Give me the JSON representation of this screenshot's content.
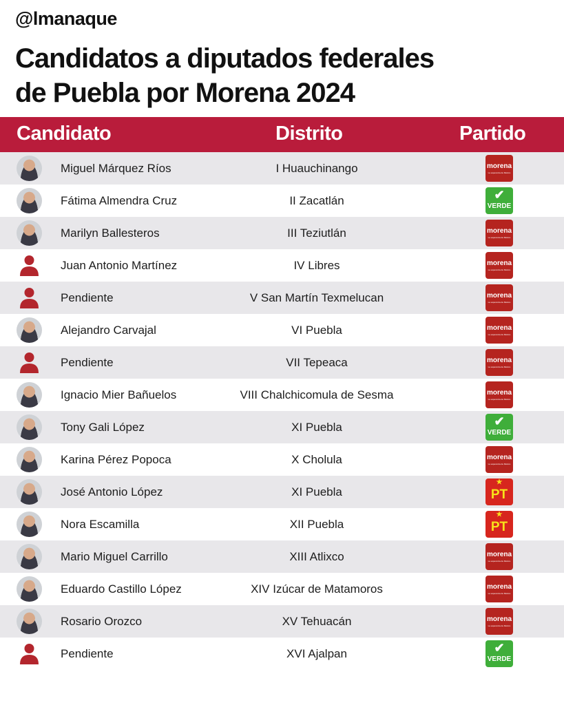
{
  "brand": "@lmanaque",
  "title_line1": "Candidatos a diputados federales",
  "title_line2": "de Puebla por Morena 2024",
  "colors": {
    "header_bg": "#b91c3b",
    "row_alt": "#e8e7ea",
    "morena": "#b5241f",
    "verde": "#3fae3a",
    "pt": "#d7261e",
    "pending_icon": "#b3262d"
  },
  "headers": {
    "candidate": "Candidato",
    "district": "Distrito",
    "party": "Partido"
  },
  "party_logos": {
    "morena": {
      "label": "morena",
      "tagline": "La esperanza de México"
    },
    "verde": {
      "label": "VERDE"
    },
    "pt": {
      "label": "PT",
      "star": "★"
    }
  },
  "rows": [
    {
      "name": "Miguel Márquez Ríos",
      "district": "I Huauchinango",
      "party": "morena",
      "avatar": "photo"
    },
    {
      "name": "Fátima Almendra Cruz",
      "district": "II Zacatlán",
      "party": "verde",
      "avatar": "photo"
    },
    {
      "name": "Marilyn Ballesteros",
      "district": "III Teziutlán",
      "party": "morena",
      "avatar": "photo"
    },
    {
      "name": "Juan Antonio Martínez",
      "district": "IV Libres",
      "party": "morena",
      "avatar": "pending"
    },
    {
      "name": "Pendiente",
      "district": "V San Martín Texmelucan",
      "party": "morena",
      "avatar": "pending"
    },
    {
      "name": "Alejandro Carvajal",
      "district": "VI Puebla",
      "party": "morena",
      "avatar": "photo"
    },
    {
      "name": "Pendiente",
      "district": "VII Tepeaca",
      "party": "morena",
      "avatar": "pending"
    },
    {
      "name": "Ignacio Mier Bañuelos",
      "district": "VIII Chalchicomula de Sesma",
      "party": "morena",
      "avatar": "photo"
    },
    {
      "name": "Tony Gali López",
      "district": "XI Puebla",
      "party": "verde",
      "avatar": "photo"
    },
    {
      "name": "Karina Pérez Popoca",
      "district": "X Cholula",
      "party": "morena",
      "avatar": "photo"
    },
    {
      "name": "José Antonio López",
      "district": "XI Puebla",
      "party": "pt",
      "avatar": "photo"
    },
    {
      "name": "Nora Escamilla",
      "district": "XII Puebla",
      "party": "pt",
      "avatar": "photo"
    },
    {
      "name": "Mario Miguel Carrillo",
      "district": "XIII Atlixco",
      "party": "morena",
      "avatar": "photo"
    },
    {
      "name": "Eduardo Castillo López",
      "district": "XIV Izúcar de Matamoros",
      "party": "morena",
      "avatar": "photo"
    },
    {
      "name": "Rosario Orozco",
      "district": "XV Tehuacán",
      "party": "morena",
      "avatar": "photo"
    },
    {
      "name": "Pendiente",
      "district": "XVI Ajalpan",
      "party": "verde",
      "avatar": "pending"
    }
  ]
}
